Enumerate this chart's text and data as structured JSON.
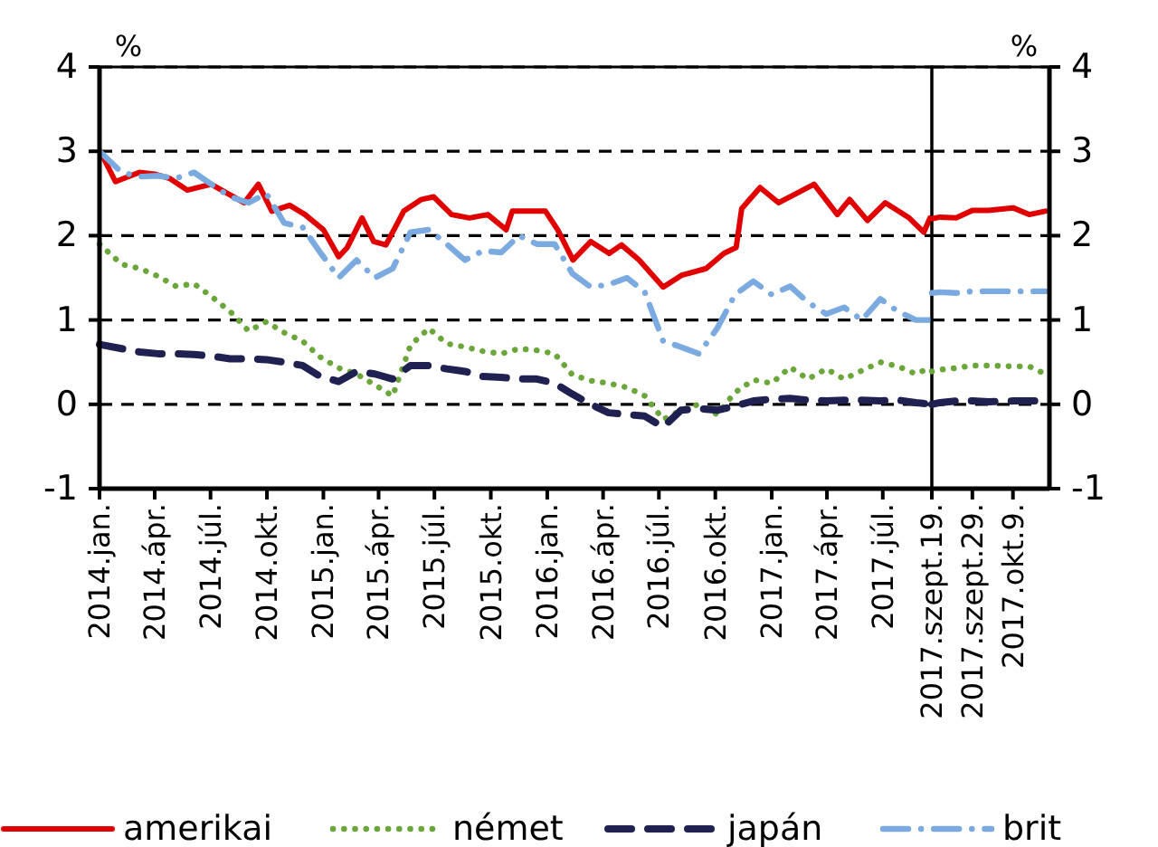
{
  "chart_data": [
    {
      "type": "line",
      "ylabel": "%",
      "xlim": [
        "2014-01-01",
        "2017-09-19"
      ],
      "ylim": [
        -1,
        4
      ],
      "yticks": [
        -1,
        0,
        1,
        2,
        3,
        4
      ],
      "xticks": [
        {
          "value": "2014-01-01",
          "label": "2014.jan."
        },
        {
          "value": "2014-04-01",
          "label": "2014.ápr."
        },
        {
          "value": "2014-07-01",
          "label": "2014.júl."
        },
        {
          "value": "2014-10-01",
          "label": "2014.okt."
        },
        {
          "value": "2015-01-01",
          "label": "2015.jan."
        },
        {
          "value": "2015-04-01",
          "label": "2015.ápr."
        },
        {
          "value": "2015-07-01",
          "label": "2015.júl."
        },
        {
          "value": "2015-10-01",
          "label": "2015.okt."
        },
        {
          "value": "2016-01-01",
          "label": "2016.jan."
        },
        {
          "value": "2016-04-01",
          "label": "2016.ápr."
        },
        {
          "value": "2016-07-01",
          "label": "2016.júl."
        },
        {
          "value": "2016-10-01",
          "label": "2016.okt."
        },
        {
          "value": "2017-01-01",
          "label": "2017.jan."
        },
        {
          "value": "2017-04-01",
          "label": "2017.ápr."
        },
        {
          "value": "2017-07-01",
          "label": "2017.júl."
        }
      ],
      "grid": "y",
      "legend": "bottom",
      "series": [
        {
          "name": "amerikai",
          "color": "#e00000",
          "line_style": "solid",
          "x": [
            "2014-01-02",
            "2014-01-27",
            "2014-03-07",
            "2014-04-01",
            "2014-04-25",
            "2014-05-24",
            "2014-07-02",
            "2014-07-31",
            "2014-08-25",
            "2014-09-17",
            "2014-10-09",
            "2014-11-07",
            "2014-12-02",
            "2015-01-01",
            "2015-01-26",
            "2015-02-09",
            "2015-03-05",
            "2015-03-24",
            "2015-04-13",
            "2015-05-12",
            "2015-06-10",
            "2015-06-30",
            "2015-07-29",
            "2015-08-27",
            "2015-09-26",
            "2015-10-26",
            "2015-11-05",
            "2015-12-04",
            "2015-12-29",
            "2016-01-18",
            "2016-02-12",
            "2016-03-12",
            "2016-04-11",
            "2016-05-01",
            "2016-05-30",
            "2016-07-08",
            "2016-08-07",
            "2016-09-16",
            "2016-10-15",
            "2016-11-04",
            "2016-11-13",
            "2016-12-13",
            "2017-01-12",
            "2017-02-10",
            "2017-03-11",
            "2017-04-18",
            "2017-05-08",
            "2017-06-06",
            "2017-07-05",
            "2017-08-13",
            "2017-09-06",
            "2017-09-16"
          ],
          "values": [
            3.0,
            2.64,
            2.75,
            2.73,
            2.68,
            2.54,
            2.61,
            2.49,
            2.39,
            2.61,
            2.29,
            2.36,
            2.25,
            2.07,
            1.75,
            1.86,
            2.21,
            1.93,
            1.89,
            2.29,
            2.43,
            2.46,
            2.25,
            2.21,
            2.25,
            2.07,
            2.29,
            2.29,
            2.29,
            2.07,
            1.71,
            1.93,
            1.79,
            1.89,
            1.71,
            1.39,
            1.53,
            1.61,
            1.79,
            1.86,
            2.32,
            2.57,
            2.39,
            2.5,
            2.61,
            2.25,
            2.43,
            2.18,
            2.39,
            2.21,
            2.04,
            2.21
          ]
        },
        {
          "name": "német",
          "color": "#6aa63a",
          "line_style": "dotted",
          "x": [
            "2014-01-01",
            "2014-02-06",
            "2014-03-08",
            "2014-04-06",
            "2014-05-06",
            "2014-06-04",
            "2014-07-04",
            "2014-08-02",
            "2014-09-01",
            "2014-09-30",
            "2014-10-29",
            "2014-11-28",
            "2014-12-27",
            "2015-01-26",
            "2015-02-24",
            "2015-03-26",
            "2015-04-24",
            "2015-05-23",
            "2015-06-22",
            "2015-07-21",
            "2015-08-20",
            "2015-09-18",
            "2015-10-18",
            "2015-11-16",
            "2015-12-15",
            "2016-01-13",
            "2016-02-11",
            "2016-03-12",
            "2016-04-10",
            "2016-05-10",
            "2016-06-08",
            "2016-07-08",
            "2016-08-06",
            "2016-09-04",
            "2016-10-04",
            "2016-11-02",
            "2016-12-02",
            "2017-01-01",
            "2017-01-31",
            "2017-03-01",
            "2017-03-31",
            "2017-04-29",
            "2017-05-28",
            "2017-06-27",
            "2017-07-26",
            "2017-08-24",
            "2017-09-18"
          ],
          "values": [
            1.9,
            1.66,
            1.61,
            1.52,
            1.4,
            1.43,
            1.27,
            1.1,
            0.87,
            0.98,
            0.85,
            0.75,
            0.56,
            0.43,
            0.36,
            0.23,
            0.1,
            0.7,
            0.9,
            0.72,
            0.68,
            0.63,
            0.6,
            0.66,
            0.64,
            0.6,
            0.35,
            0.28,
            0.25,
            0.2,
            0.1,
            -0.18,
            -0.07,
            0.0,
            -0.12,
            0.14,
            0.29,
            0.25,
            0.44,
            0.3,
            0.42,
            0.3,
            0.4,
            0.5,
            0.45,
            0.36,
            0.44
          ]
        },
        {
          "name": "japán",
          "color": "#1f2150",
          "line_style": "dashed",
          "x": [
            "2014-01-01",
            "2014-02-06",
            "2014-03-08",
            "2014-04-06",
            "2014-05-06",
            "2014-06-04",
            "2014-07-04",
            "2014-08-02",
            "2014-09-01",
            "2014-09-30",
            "2014-10-29",
            "2014-11-28",
            "2014-12-27",
            "2015-01-26",
            "2015-02-24",
            "2015-03-26",
            "2015-04-24",
            "2015-05-23",
            "2015-06-22",
            "2015-07-21",
            "2015-08-20",
            "2015-09-18",
            "2015-10-18",
            "2015-11-16",
            "2015-12-15",
            "2016-01-13",
            "2016-02-11",
            "2016-03-12",
            "2016-04-10",
            "2016-05-10",
            "2016-06-08",
            "2016-07-08",
            "2016-08-06",
            "2016-09-04",
            "2016-10-04",
            "2016-11-02",
            "2016-12-02",
            "2017-01-01",
            "2017-01-31",
            "2017-03-01",
            "2017-03-31",
            "2017-04-29",
            "2017-05-28",
            "2017-06-27",
            "2017-07-26",
            "2017-08-24",
            "2017-09-18"
          ],
          "values": [
            0.71,
            0.66,
            0.62,
            0.6,
            0.6,
            0.59,
            0.57,
            0.54,
            0.54,
            0.53,
            0.5,
            0.46,
            0.33,
            0.27,
            0.39,
            0.36,
            0.3,
            0.46,
            0.46,
            0.42,
            0.39,
            0.33,
            0.32,
            0.3,
            0.3,
            0.25,
            0.12,
            0.0,
            -0.1,
            -0.12,
            -0.14,
            -0.27,
            -0.07,
            -0.05,
            -0.07,
            -0.02,
            0.04,
            0.06,
            0.07,
            0.05,
            0.04,
            0.05,
            0.05,
            0.04,
            0.05,
            0.02,
            0.0
          ]
        },
        {
          "name": "brit",
          "color": "#7aaadf",
          "line_style": "dashdot",
          "x": [
            "2014-01-01",
            "2014-02-06",
            "2014-03-08",
            "2014-04-06",
            "2014-05-06",
            "2014-06-04",
            "2014-07-04",
            "2014-08-02",
            "2014-09-01",
            "2014-09-30",
            "2014-10-29",
            "2014-11-28",
            "2014-12-27",
            "2015-01-26",
            "2015-02-24",
            "2015-03-26",
            "2015-04-24",
            "2015-05-23",
            "2015-06-22",
            "2015-07-21",
            "2015-08-20",
            "2015-09-18",
            "2015-10-18",
            "2015-11-16",
            "2015-12-15",
            "2016-01-13",
            "2016-02-11",
            "2016-03-12",
            "2016-04-10",
            "2016-05-10",
            "2016-06-08",
            "2016-07-08",
            "2016-08-06",
            "2016-09-04",
            "2016-10-04",
            "2016-11-02",
            "2016-12-02",
            "2017-01-01",
            "2017-01-31",
            "2017-03-01",
            "2017-03-31",
            "2017-04-29",
            "2017-05-28",
            "2017-06-27",
            "2017-07-26",
            "2017-08-24",
            "2017-09-18"
          ],
          "values": [
            3.0,
            2.75,
            2.7,
            2.71,
            2.68,
            2.75,
            2.6,
            2.46,
            2.39,
            2.5,
            2.15,
            2.1,
            1.8,
            1.5,
            1.71,
            1.5,
            1.61,
            2.04,
            2.07,
            1.9,
            1.71,
            1.82,
            1.8,
            2.0,
            1.9,
            1.9,
            1.55,
            1.39,
            1.42,
            1.5,
            1.33,
            0.75,
            0.68,
            0.6,
            0.9,
            1.3,
            1.46,
            1.3,
            1.4,
            1.21,
            1.07,
            1.15,
            1.0,
            1.25,
            1.1,
            1.0,
            1.0
          ]
        }
      ]
    },
    {
      "type": "line",
      "y2label": "%",
      "xlim": [
        "2017-09-19",
        "2017-10-18"
      ],
      "y2lim": [
        -1,
        4
      ],
      "y2ticks": [
        -1,
        0,
        1,
        2,
        3,
        4
      ],
      "xticks": [
        {
          "value": "2017-09-19",
          "label": "2017.szept.19."
        },
        {
          "value": "2017-09-29",
          "label": "2017.szept.29."
        },
        {
          "value": "2017-10-09",
          "label": "2017.okt.9."
        }
      ],
      "grid": "y",
      "series": [
        {
          "color": "#e00000",
          "line_style": "solid",
          "axis": "y2",
          "x": [
            "2017-09-19",
            "2017-09-21",
            "2017-09-25",
            "2017-09-29",
            "2017-10-03",
            "2017-10-09",
            "2017-10-13",
            "2017-10-17"
          ],
          "values": [
            2.2,
            2.22,
            2.21,
            2.3,
            2.3,
            2.33,
            2.25,
            2.29
          ]
        },
        {
          "color": "#6aa63a",
          "line_style": "dotted",
          "axis": "y2",
          "x": [
            "2017-09-19",
            "2017-09-21",
            "2017-09-25",
            "2017-09-29",
            "2017-10-03",
            "2017-10-09",
            "2017-10-13",
            "2017-10-17"
          ],
          "values": [
            0.39,
            0.41,
            0.43,
            0.46,
            0.46,
            0.45,
            0.45,
            0.36
          ]
        },
        {
          "color": "#1f2150",
          "line_style": "dashed",
          "axis": "y2",
          "x": [
            "2017-09-19",
            "2017-09-21",
            "2017-09-25",
            "2017-09-29",
            "2017-10-03",
            "2017-10-09",
            "2017-10-13",
            "2017-10-17"
          ],
          "values": [
            0.0,
            0.02,
            0.04,
            0.04,
            0.03,
            0.04,
            0.04,
            0.04
          ]
        },
        {
          "color": "#7aaadf",
          "line_style": "dashdot",
          "axis": "y2",
          "x": [
            "2017-09-19",
            "2017-09-21",
            "2017-09-25",
            "2017-09-29",
            "2017-10-03",
            "2017-10-09",
            "2017-10-13",
            "2017-10-17"
          ],
          "values": [
            1.32,
            1.33,
            1.32,
            1.34,
            1.34,
            1.34,
            1.34,
            1.34
          ]
        }
      ]
    }
  ]
}
